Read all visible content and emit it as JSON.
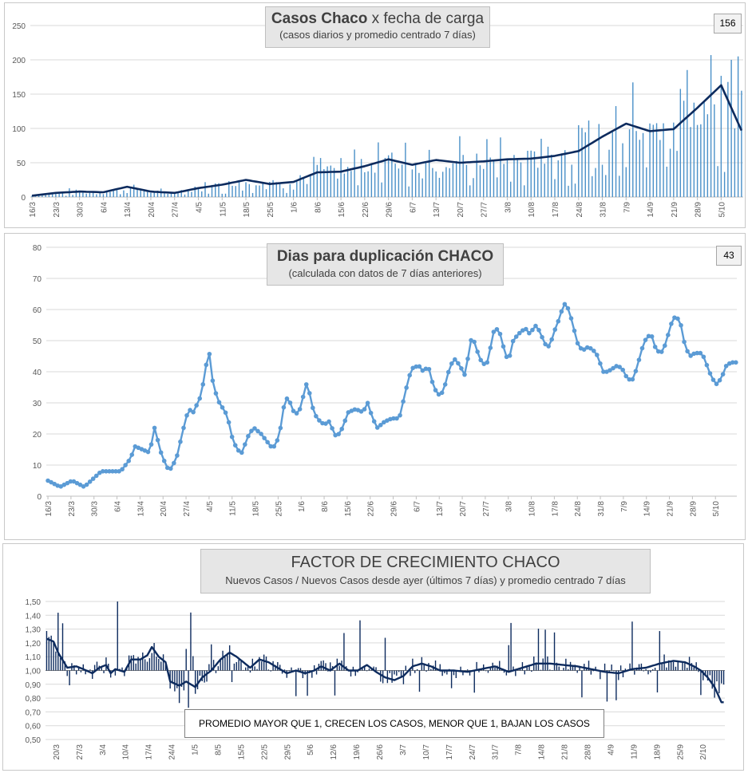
{
  "charts": {
    "cases": {
      "title_bold": "Casos Chaco",
      "title_rest": "x fecha de carga",
      "subtitle": "(casos diarios y promedio  centrado 7 días)",
      "badge": "156"
    },
    "doubling": {
      "title": "Dias para duplicación CHACO",
      "subtitle": "(calculada con datos de 7 días anteriores)",
      "badge": "43"
    },
    "growth": {
      "title": "FACTOR DE CRECIMIENTO CHACO",
      "subtitle": "Nuevos Casos  / Nuevos Casos desde ayer (últimos 7 días) y promedio  centrado  7 días",
      "note": "PROMEDIO MAYOR QUE 1, CRECEN LOS CASOS, MENOR QUE 1, BAJAN LOS CASOS"
    }
  },
  "chart_data": [
    {
      "type": "bar",
      "title": "Casos Chaco x fecha de carga",
      "subtitle": "(casos diarios y promedio  centrado 7 días)",
      "ylim": [
        0,
        250
      ],
      "yticks": [
        0,
        50,
        100,
        150,
        200,
        250
      ],
      "x_start": "16/3",
      "x_end": "11/10",
      "xtick_labels": [
        "16/3",
        "23/3",
        "30/3",
        "6/4",
        "13/4",
        "20/4",
        "27/4",
        "4/5",
        "11/5",
        "18/5",
        "25/5",
        "1/6",
        "8/6",
        "15/6",
        "22/6",
        "29/6",
        "6/7",
        "13/7",
        "20/7",
        "27/7",
        "3/8",
        "10/8",
        "17/8",
        "24/8",
        "31/8",
        "7/9",
        "14/9",
        "21/9",
        "28/9",
        "5/10"
      ],
      "series": [
        {
          "name": "casos diarios",
          "kind": "bars",
          "weekly_anchors": [
            2,
            6,
            8,
            7,
            14,
            8,
            6,
            14,
            18,
            25,
            20,
            22,
            38,
            36,
            46,
            55,
            48,
            52,
            50,
            52,
            55,
            56,
            60,
            70,
            90,
            105,
            95,
            100,
            140,
            150,
            95
          ],
          "last_values": [
            200,
            100,
            205,
            155
          ]
        },
        {
          "name": "promedio centrado 7 días",
          "kind": "line",
          "weekly_anchors": [
            2,
            6,
            8,
            7,
            15,
            8,
            6,
            13,
            18,
            25,
            19,
            22,
            36,
            37,
            45,
            55,
            47,
            54,
            50,
            52,
            55,
            56,
            60,
            67,
            88,
            107,
            96,
            99,
            130,
            163,
            86
          ]
        }
      ]
    },
    {
      "type": "line",
      "title": "Dias para duplicación CHACO",
      "subtitle": "(calculada con datos de 7 días anteriores)",
      "ylim": [
        0,
        80
      ],
      "yticks": [
        0,
        10,
        20,
        30,
        40,
        50,
        60,
        70,
        80
      ],
      "xtick_labels": [
        "16/3",
        "23/3",
        "30/3",
        "6/4",
        "13/4",
        "20/4",
        "27/4",
        "4/5",
        "11/5",
        "18/5",
        "25/5",
        "1/6",
        "8/6",
        "15/6",
        "22/6",
        "29/6",
        "6/7",
        "13/7",
        "20/7",
        "27/7",
        "3/8",
        "10/8",
        "17/8",
        "24/8",
        "31/8",
        "7/9",
        "14/9",
        "21/9",
        "28/9",
        "5/10"
      ],
      "anchors": [
        [
          0,
          5
        ],
        [
          5,
          3
        ],
        [
          10,
          5
        ],
        [
          15,
          3
        ],
        [
          22,
          8
        ],
        [
          30,
          8
        ],
        [
          34,
          12
        ],
        [
          36,
          16
        ],
        [
          42,
          14
        ],
        [
          44,
          22
        ],
        [
          47,
          13
        ],
        [
          50,
          8
        ],
        [
          53,
          12
        ],
        [
          56,
          22
        ],
        [
          58,
          28
        ],
        [
          60,
          27
        ],
        [
          63,
          32
        ],
        [
          65,
          40
        ],
        [
          66,
          47
        ],
        [
          67,
          45
        ],
        [
          68,
          37
        ],
        [
          70,
          31
        ],
        [
          74,
          26
        ],
        [
          76,
          19
        ],
        [
          78,
          15
        ],
        [
          80,
          14
        ],
        [
          83,
          20
        ],
        [
          85,
          22
        ],
        [
          88,
          20
        ],
        [
          92,
          16
        ],
        [
          94,
          16
        ],
        [
          96,
          22
        ],
        [
          98,
          32
        ],
        [
          100,
          30
        ],
        [
          102,
          26
        ],
        [
          104,
          28
        ],
        [
          107,
          37
        ],
        [
          109,
          29
        ],
        [
          111,
          25
        ],
        [
          114,
          23
        ],
        [
          116,
          24
        ],
        [
          119,
          19
        ],
        [
          121,
          21
        ],
        [
          124,
          27
        ],
        [
          127,
          28
        ],
        [
          130,
          27
        ],
        [
          132,
          30
        ],
        [
          134,
          25
        ],
        [
          136,
          22
        ],
        [
          139,
          24
        ],
        [
          142,
          25
        ],
        [
          145,
          25
        ],
        [
          148,
          35
        ],
        [
          150,
          41
        ],
        [
          153,
          42
        ],
        [
          155,
          40
        ],
        [
          157,
          42
        ],
        [
          158,
          38
        ],
        [
          160,
          34
        ],
        [
          162,
          32
        ],
        [
          164,
          36
        ],
        [
          166,
          42
        ],
        [
          168,
          44
        ],
        [
          170,
          42
        ],
        [
          172,
          39
        ],
        [
          174,
          47
        ],
        [
          175,
          52
        ],
        [
          177,
          47
        ],
        [
          179,
          43
        ],
        [
          181,
          42
        ],
        [
          183,
          49
        ],
        [
          184,
          53
        ],
        [
          186,
          54
        ],
        [
          188,
          48
        ],
        [
          190,
          43
        ],
        [
          192,
          50
        ],
        [
          194,
          52
        ],
        [
          197,
          54
        ],
        [
          199,
          52
        ],
        [
          201,
          55
        ],
        [
          203,
          53
        ],
        [
          205,
          49
        ],
        [
          207,
          48
        ],
        [
          209,
          53
        ],
        [
          211,
          57
        ],
        [
          213,
          62
        ],
        [
          215,
          60
        ],
        [
          217,
          54
        ],
        [
          219,
          48
        ],
        [
          221,
          47
        ],
        [
          223,
          48
        ],
        [
          225,
          47
        ],
        [
          227,
          45
        ],
        [
          229,
          40
        ],
        [
          231,
          40
        ],
        [
          233,
          41
        ],
        [
          235,
          42
        ],
        [
          237,
          41
        ],
        [
          239,
          38
        ],
        [
          241,
          37
        ],
        [
          243,
          41
        ],
        [
          245,
          47
        ],
        [
          247,
          51
        ],
        [
          249,
          52
        ],
        [
          251,
          47
        ],
        [
          253,
          46
        ],
        [
          255,
          49
        ],
        [
          257,
          55
        ],
        [
          259,
          58
        ],
        [
          261,
          56
        ],
        [
          263,
          48
        ],
        [
          265,
          45
        ],
        [
          267,
          46
        ],
        [
          270,
          46
        ],
        [
          272,
          42
        ],
        [
          274,
          38
        ],
        [
          276,
          36
        ],
        [
          278,
          38
        ],
        [
          280,
          42
        ],
        [
          282,
          43
        ],
        [
          284,
          43
        ]
      ]
    },
    {
      "type": "bar",
      "title": "FACTOR DE CRECIMIENTO CHACO",
      "subtitle": "Nuevos Casos  / Nuevos Casos desde ayer (últimos 7 días) y promedio  centrado  7 días",
      "baseline": 1.0,
      "ylim": [
        0.5,
        1.5
      ],
      "yticks": [
        "0,50",
        "0,60",
        "0,70",
        "0,80",
        "0,90",
        "1,00",
        "1,10",
        "1,20",
        "1,30",
        "1,40",
        "1,50"
      ],
      "xtick_labels": [
        "20/3",
        "27/3",
        "3/4",
        "10/4",
        "17/4",
        "24/4",
        "1/5",
        "8/5",
        "15/5",
        "22/5",
        "29/5",
        "5/6",
        "12/6",
        "19/6",
        "26/6",
        "3/7",
        "10/7",
        "17/7",
        "24/7",
        "31/7",
        "7/8",
        "14/8",
        "21/8",
        "28/8",
        "4/9",
        "11/9",
        "18/9",
        "25/9",
        "2/10"
      ],
      "series": [
        {
          "name": "factor diario",
          "kind": "bars",
          "range": [
            0.73,
            1.5
          ]
        },
        {
          "name": "promedio centrado 7 días",
          "kind": "line",
          "anchors": [
            [
              0,
              1.23
            ],
            [
              3,
              1.21
            ],
            [
              5,
              1.13
            ],
            [
              9,
              1.02
            ],
            [
              13,
              1.03
            ],
            [
              16,
              1.01
            ],
            [
              20,
              0.98
            ],
            [
              23,
              1.02
            ],
            [
              26,
              1.04
            ],
            [
              28,
              0.98
            ],
            [
              30,
              1.01
            ],
            [
              34,
              0.99
            ],
            [
              37,
              1.08
            ],
            [
              41,
              1.08
            ],
            [
              44,
              1.11
            ],
            [
              46,
              1.17
            ],
            [
              49,
              1.1
            ],
            [
              52,
              1.06
            ],
            [
              54,
              0.92
            ],
            [
              58,
              0.89
            ],
            [
              61,
              0.92
            ],
            [
              65,
              0.88
            ],
            [
              68,
              0.95
            ],
            [
              72,
              1.0
            ],
            [
              76,
              1.08
            ],
            [
              80,
              1.13
            ],
            [
              83,
              1.1
            ],
            [
              86,
              1.06
            ],
            [
              89,
              1.02
            ],
            [
              93,
              1.08
            ],
            [
              97,
              1.06
            ],
            [
              101,
              1.02
            ],
            [
              105,
              0.98
            ],
            [
              109,
              1.0
            ],
            [
              113,
              0.98
            ],
            [
              117,
              1.0
            ],
            [
              120,
              1.03
            ],
            [
              124,
              1.0
            ],
            [
              128,
              1.05
            ],
            [
              132,
              1.0
            ],
            [
              136,
              1.0
            ],
            [
              140,
              1.04
            ],
            [
              144,
              0.99
            ],
            [
              148,
              0.95
            ],
            [
              152,
              0.93
            ],
            [
              156,
              0.96
            ],
            [
              160,
              1.03
            ],
            [
              164,
              1.05
            ],
            [
              168,
              1.03
            ],
            [
              172,
              1.0
            ],
            [
              178,
              1.0
            ],
            [
              184,
              0.99
            ],
            [
              190,
              1.01
            ],
            [
              196,
              1.03
            ],
            [
              202,
              0.99
            ],
            [
              208,
              1.02
            ],
            [
              214,
              1.05
            ],
            [
              220,
              1.05
            ],
            [
              226,
              1.04
            ],
            [
              232,
              1.03
            ],
            [
              238,
              1.01
            ],
            [
              244,
              0.99
            ],
            [
              250,
              0.98
            ],
            [
              256,
              1.01
            ],
            [
              262,
              1.02
            ],
            [
              268,
              1.05
            ],
            [
              274,
              1.07
            ],
            [
              279,
              1.06
            ],
            [
              283,
              1.03
            ],
            [
              286,
              1.0
            ],
            [
              289,
              0.95
            ],
            [
              292,
              0.88
            ],
            [
              295,
              0.77
            ]
          ]
        }
      ]
    }
  ]
}
